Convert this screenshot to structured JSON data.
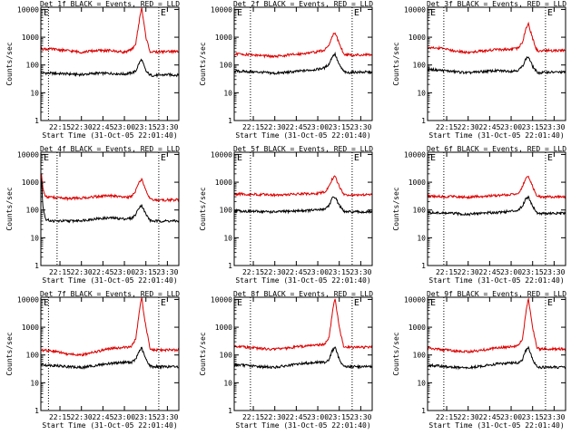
{
  "figure": {
    "series_colors": {
      "events": "#000000",
      "lld": "#dd0000"
    },
    "x_ticks": [
      "22:15",
      "22:30",
      "22:45",
      "23:00",
      "23:15",
      "23:30"
    ],
    "x_label": "Start Time (31-Oct-05 22:01:40)",
    "y_label": "Counts/sec",
    "y_ticks": [
      "1",
      "10",
      "100",
      "1000",
      "10000"
    ],
    "edge_markers": [
      "E",
      "E"
    ]
  },
  "chart_data": [
    {
      "type": "line",
      "title": "Det 1f BLACK = Events, RED = LLD",
      "x_range": [
        "22:01:40",
        "23:38"
      ],
      "y_log": true,
      "ylim": [
        1,
        12000
      ],
      "x_markers": [
        "22:07",
        "23:24"
      ],
      "x": [
        "22:02",
        "22:10",
        "22:20",
        "22:30",
        "22:40",
        "22:50",
        "23:00",
        "23:05",
        "23:08",
        "23:10",
        "23:12",
        "23:15",
        "23:18",
        "23:20",
        "23:25",
        "23:30",
        "23:38"
      ],
      "series": [
        {
          "key": "events",
          "values": [
            52,
            50,
            48,
            45,
            50,
            50,
            47,
            52,
            60,
            110,
            160,
            60,
            43,
            42,
            43,
            45,
            43
          ]
        },
        {
          "key": "lld",
          "values": [
            380,
            370,
            330,
            290,
            330,
            330,
            290,
            350,
            600,
            3000,
            12000,
            1000,
            300,
            290,
            300,
            310,
            300
          ]
        }
      ]
    },
    {
      "type": "line",
      "title": "Det 2f BLACK = Events, RED = LLD",
      "x_range": [
        "22:01:40",
        "23:38"
      ],
      "y_log": true,
      "ylim": [
        1,
        12000
      ],
      "x_markers": [
        "22:13",
        "23:24"
      ],
      "x": [
        "22:02",
        "22:10",
        "22:20",
        "22:30",
        "22:40",
        "22:50",
        "23:00",
        "23:05",
        "23:08",
        "23:10",
        "23:12",
        "23:15",
        "23:18",
        "23:20",
        "23:25",
        "23:30",
        "23:38"
      ],
      "series": [
        {
          "key": "events",
          "values": [
            60,
            58,
            55,
            50,
            55,
            62,
            70,
            80,
            110,
            200,
            250,
            100,
            60,
            52,
            55,
            55,
            55
          ]
        },
        {
          "key": "lld",
          "values": [
            250,
            240,
            220,
            200,
            230,
            260,
            300,
            350,
            550,
            1100,
            1500,
            600,
            260,
            230,
            230,
            230,
            230
          ]
        }
      ]
    },
    {
      "type": "line",
      "title": "Det 3f BLACK = Events, RED = LLD",
      "x_range": [
        "22:01:40",
        "23:38"
      ],
      "y_log": true,
      "ylim": [
        1,
        12000
      ],
      "x_markers": [
        "22:13",
        "23:24"
      ],
      "x": [
        "22:02",
        "22:10",
        "22:20",
        "22:30",
        "22:40",
        "22:50",
        "23:00",
        "23:05",
        "23:08",
        "23:10",
        "23:12",
        "23:15",
        "23:18",
        "23:20",
        "23:25",
        "23:30",
        "23:38"
      ],
      "series": [
        {
          "key": "events",
          "values": [
            70,
            65,
            58,
            52,
            58,
            62,
            60,
            65,
            90,
            160,
            200,
            90,
            55,
            52,
            55,
            55,
            55
          ]
        },
        {
          "key": "lld",
          "values": [
            420,
            400,
            330,
            280,
            320,
            360,
            360,
            400,
            700,
            1800,
            3000,
            900,
            330,
            320,
            330,
            330,
            330
          ]
        }
      ]
    },
    {
      "type": "line",
      "title": "Det 4f BLACK = Events, RED = LLD",
      "x_range": [
        "22:01:40",
        "23:38"
      ],
      "y_log": true,
      "ylim": [
        1,
        12000
      ],
      "x_markers": [
        "22:13",
        "23:24"
      ],
      "x": [
        "22:02",
        "22:03",
        "22:05",
        "22:10",
        "22:20",
        "22:30",
        "22:40",
        "22:50",
        "23:00",
        "23:05",
        "23:08",
        "23:10",
        "23:12",
        "23:15",
        "23:18",
        "23:20",
        "23:25",
        "23:30",
        "23:38"
      ],
      "series": [
        {
          "key": "events",
          "values": [
            1500,
            150,
            45,
            40,
            40,
            42,
            48,
            52,
            48,
            50,
            70,
            120,
            150,
            70,
            42,
            40,
            40,
            40,
            40
          ]
        },
        {
          "key": "lld",
          "values": [
            2000,
            600,
            300,
            280,
            260,
            270,
            300,
            330,
            280,
            300,
            500,
            1000,
            1300,
            500,
            250,
            230,
            230,
            230,
            230
          ]
        }
      ]
    },
    {
      "type": "line",
      "title": "Det 5f BLACK = Events, RED = LLD",
      "x_range": [
        "22:01:40",
        "23:38"
      ],
      "y_log": true,
      "ylim": [
        1,
        12000
      ],
      "x_markers": [
        "22:13",
        "23:24"
      ],
      "x": [
        "22:02",
        "22:10",
        "22:20",
        "22:30",
        "22:40",
        "22:50",
        "23:00",
        "23:05",
        "23:08",
        "23:10",
        "23:12",
        "23:15",
        "23:18",
        "23:20",
        "23:25",
        "23:30",
        "23:38"
      ],
      "series": [
        {
          "key": "events",
          "values": [
            95,
            90,
            88,
            85,
            90,
            95,
            100,
            110,
            150,
            260,
            300,
            150,
            90,
            85,
            85,
            85,
            85
          ]
        },
        {
          "key": "lld",
          "values": [
            380,
            370,
            360,
            350,
            370,
            380,
            400,
            450,
            700,
            1300,
            1600,
            700,
            370,
            350,
            350,
            350,
            350
          ]
        }
      ]
    },
    {
      "type": "line",
      "title": "Det 6f BLACK = Events, RED = LLD",
      "x_range": [
        "22:01:40",
        "23:38"
      ],
      "y_log": true,
      "ylim": [
        1,
        12000
      ],
      "x_markers": [
        "22:13",
        "23:24"
      ],
      "x": [
        "22:02",
        "22:10",
        "22:20",
        "22:30",
        "22:40",
        "22:50",
        "23:00",
        "23:05",
        "23:08",
        "23:10",
        "23:12",
        "23:15",
        "23:18",
        "23:20",
        "23:25",
        "23:30",
        "23:38"
      ],
      "series": [
        {
          "key": "events",
          "values": [
            80,
            78,
            75,
            70,
            78,
            82,
            90,
            100,
            140,
            250,
            300,
            140,
            80,
            75,
            75,
            75,
            75
          ]
        },
        {
          "key": "lld",
          "values": [
            320,
            310,
            300,
            290,
            310,
            330,
            360,
            400,
            700,
            1300,
            1700,
            700,
            330,
            300,
            300,
            300,
            300
          ]
        }
      ]
    },
    {
      "type": "line",
      "title": "Det 7f BLACK = Events, RED = LLD",
      "x_range": [
        "22:01:40",
        "23:38"
      ],
      "y_log": true,
      "ylim": [
        1,
        12000
      ],
      "x_markers": [
        "22:07",
        "23:24"
      ],
      "x": [
        "22:02",
        "22:10",
        "22:20",
        "22:30",
        "22:40",
        "22:50",
        "23:00",
        "23:05",
        "23:08",
        "23:10",
        "23:12",
        "23:15",
        "23:18",
        "23:20",
        "23:25",
        "23:30",
        "23:38"
      ],
      "series": [
        {
          "key": "events",
          "values": [
            45,
            42,
            38,
            35,
            42,
            50,
            55,
            55,
            70,
            130,
            180,
            70,
            40,
            38,
            38,
            38,
            38
          ]
        },
        {
          "key": "lld",
          "values": [
            150,
            140,
            110,
            100,
            130,
            170,
            190,
            200,
            400,
            2500,
            12000,
            1000,
            170,
            150,
            150,
            150,
            150
          ]
        }
      ]
    },
    {
      "type": "line",
      "title": "Det 8f BLACK = Events, RED = LLD",
      "x_range": [
        "22:01:40",
        "23:38"
      ],
      "y_log": true,
      "ylim": [
        1,
        12000
      ],
      "x_markers": [
        "22:13",
        "23:24"
      ],
      "x": [
        "22:02",
        "22:10",
        "22:20",
        "22:30",
        "22:40",
        "22:50",
        "23:00",
        "23:05",
        "23:08",
        "23:10",
        "23:12",
        "23:15",
        "23:18",
        "23:20",
        "23:25",
        "23:30",
        "23:38"
      ],
      "series": [
        {
          "key": "events",
          "values": [
            45,
            42,
            38,
            36,
            42,
            50,
            55,
            55,
            70,
            140,
            190,
            70,
            40,
            38,
            38,
            38,
            38
          ]
        },
        {
          "key": "lld",
          "values": [
            200,
            190,
            170,
            160,
            180,
            210,
            230,
            250,
            450,
            2800,
            12000,
            1000,
            200,
            190,
            190,
            190,
            190
          ]
        }
      ]
    },
    {
      "type": "line",
      "title": "Det 9f BLACK = Events, RED = LLD",
      "x_range": [
        "22:01:40",
        "23:38"
      ],
      "y_log": true,
      "ylim": [
        1,
        12000
      ],
      "x_markers": [
        "22:13",
        "23:24"
      ],
      "x": [
        "22:02",
        "22:10",
        "22:20",
        "22:30",
        "22:40",
        "22:50",
        "23:00",
        "23:05",
        "23:08",
        "23:10",
        "23:12",
        "23:15",
        "23:18",
        "23:20",
        "23:25",
        "23:30",
        "23:38"
      ],
      "series": [
        {
          "key": "events",
          "values": [
            42,
            40,
            36,
            34,
            40,
            48,
            52,
            52,
            70,
            140,
            180,
            70,
            38,
            36,
            36,
            36,
            36
          ]
        },
        {
          "key": "lld",
          "values": [
            170,
            160,
            140,
            130,
            150,
            180,
            200,
            210,
            400,
            2500,
            12000,
            1000,
            180,
            165,
            165,
            165,
            165
          ]
        }
      ]
    }
  ]
}
